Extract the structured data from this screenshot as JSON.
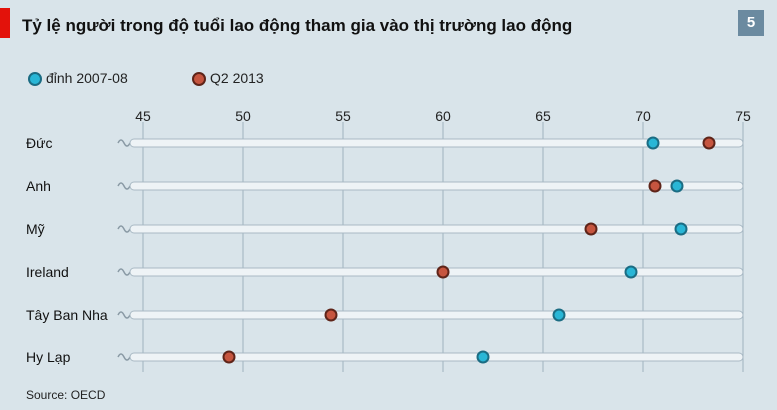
{
  "title": "Tỷ lệ người trong độ tuổi lao động tham gia vào thị trường lao động",
  "badge": "5",
  "source": "Source: OECD",
  "colors": {
    "background": "#d9e4ea",
    "series_peak": "#29b6d6",
    "series_2013": "#c6553f",
    "accent": "#e3120b"
  },
  "chart_data": {
    "type": "scatter",
    "title": "Tỷ lệ người trong độ tuổi lao động tham gia vào thị trường lao động",
    "xlabel": "",
    "ylabel": "",
    "xlim": [
      45,
      75
    ],
    "xticks": [
      45,
      50,
      55,
      60,
      65,
      70,
      75
    ],
    "grid": true,
    "legend_position": "top-left",
    "categories": [
      "Đức",
      "Anh",
      "Mỹ",
      "Ireland",
      "Tây Ban Nha",
      "Hy Lạp"
    ],
    "series": [
      {
        "name": "đỉnh 2007-08",
        "color": "#29b6d6",
        "values": [
          70.5,
          71.7,
          71.9,
          69.4,
          65.8,
          62.0
        ]
      },
      {
        "name": "Q2 2013",
        "color": "#c6553f",
        "values": [
          73.3,
          70.6,
          67.4,
          60.0,
          54.4,
          49.3
        ]
      }
    ]
  }
}
